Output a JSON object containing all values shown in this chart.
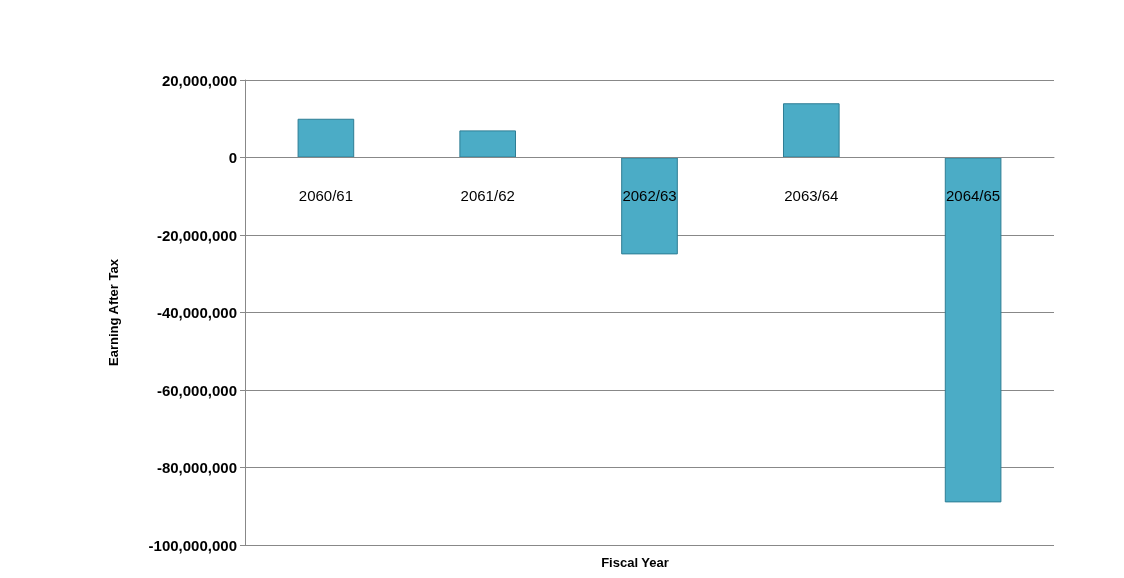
{
  "chart_data": {
    "type": "bar",
    "xlabel": "Fiscal Year",
    "ylabel": "Earning After Tax",
    "categories": [
      "2060/61",
      "2061/62",
      "2062/63",
      "2063/64",
      "2064/65"
    ],
    "values": [
      10000000,
      7000000,
      -25000000,
      14000000,
      -89000000
    ],
    "color": "#4bacc6",
    "ylim": [
      -100000000,
      20000000
    ],
    "yticks": [
      {
        "value": -100000000,
        "label": "-100,000,000"
      },
      {
        "value": -80000000,
        "label": "-80,000,000"
      },
      {
        "value": -60000000,
        "label": "-60,000,000"
      },
      {
        "value": -40000000,
        "label": "-40,000,000"
      },
      {
        "value": -20000000,
        "label": "-20,000,000"
      },
      0,
      {
        "value": 20000000,
        "label": "20,000,000"
      }
    ],
    "grid": "y"
  }
}
